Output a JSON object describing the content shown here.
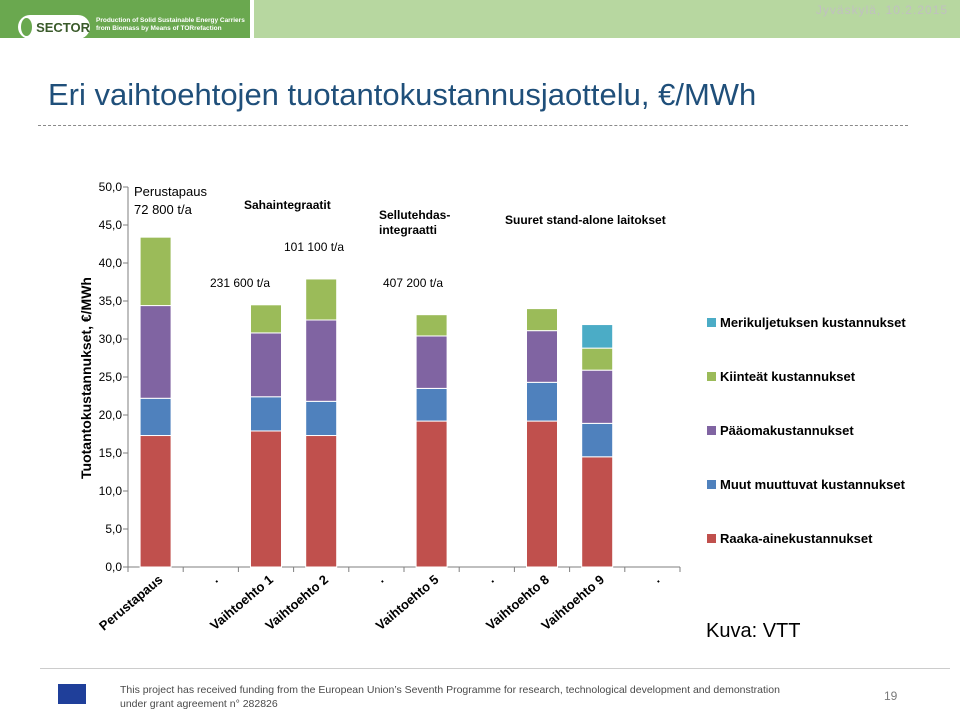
{
  "header": {
    "logo_text": "SECTOR",
    "tagline_line1": "Production of Solid Sustainable Energy Carriers",
    "tagline_line2": "from Biomass by Means of TORrefaction",
    "date": "Jyväskylä, 10.2.2015"
  },
  "title": "Eri vaihtoehtojen tuotantokustannusjaottelu, €/MWh",
  "credit": "Kuva: VTT",
  "footer": {
    "line1": "This project has received funding from the European Union’s Seventh Programme for research, technological development and demonstration",
    "line2": "under grant agreement n° 282826",
    "page": "19"
  },
  "chart_data": {
    "type": "bar",
    "stacked": true,
    "title": "",
    "xlabel": "",
    "ylabel": "Tuotantokustannukset, €/MWh",
    "ylim": [
      0,
      50
    ],
    "yticks": [
      "0,0",
      "5,0",
      "10,0",
      "15,0",
      "20,0",
      "25,0",
      "30,0",
      "35,0",
      "40,0",
      "45,0",
      "50,0"
    ],
    "categories": [
      "Perustapaus",
      ".",
      "Vaihtoehto 1",
      "Vaihtoehto 2",
      ".",
      "Vaihtoehto 5",
      ".",
      "Vaihtoehto 8",
      "Vaihtoehto 9",
      "."
    ],
    "series": [
      {
        "name": "Raaka-ainekustannukset",
        "color": "#c0504d",
        "values": [
          17.3,
          0,
          17.9,
          17.3,
          0,
          19.2,
          0,
          19.2,
          14.5,
          0
        ]
      },
      {
        "name": "Muut muuttuvat kustannukset",
        "color": "#4f81bd",
        "values": [
          4.9,
          0,
          4.5,
          4.5,
          0,
          4.3,
          0,
          5.1,
          4.4,
          0
        ]
      },
      {
        "name": "Pääomakustannukset",
        "color": "#8064a2",
        "values": [
          12.2,
          0,
          8.4,
          10.7,
          0,
          6.9,
          0,
          6.8,
          7.0,
          0
        ]
      },
      {
        "name": "Kiinteät kustannukset",
        "color": "#9bbb59",
        "values": [
          9.0,
          0,
          3.7,
          5.4,
          0,
          2.8,
          0,
          2.9,
          2.9,
          0
        ]
      },
      {
        "name": "Merikuljetuksen kustannukset",
        "color": "#4bacc6",
        "values": [
          0,
          0,
          0,
          0,
          0,
          0,
          0,
          0,
          3.1,
          0
        ]
      }
    ],
    "legend_order": [
      "Merikuljetuksen kustannukset",
      "Kiinteät kustannukset",
      "Pääomakustannukset",
      "Muut muuttuvat kustannukset",
      "Raaka-ainekustannukset"
    ],
    "legend_position": "right",
    "annotations": {
      "perustapaus_line1": "Perustapaus",
      "perustapaus_line2": "72 800 t/a",
      "saha": "Sahaintegraatit",
      "t231": "231 600 t/a",
      "t101": "101 100 t/a",
      "sellu_line1": "Sellutehdas-",
      "sellu_line2": "integraatti",
      "t407": "407 200 t/a",
      "standalone": "Suuret stand-alone laitokset"
    }
  }
}
